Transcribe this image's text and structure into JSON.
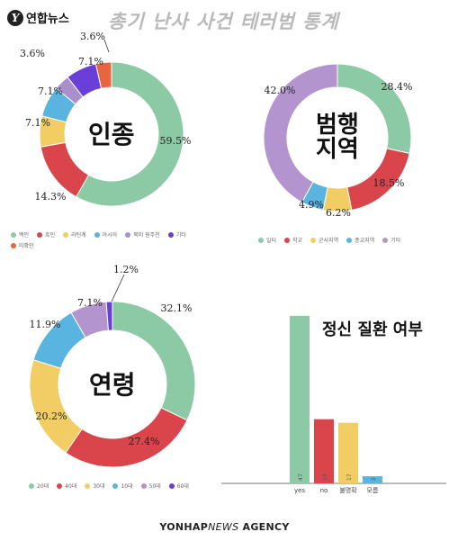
{
  "header": {
    "logo_text": "연합뉴스",
    "title": "총기 난사 사건 테러범 통계"
  },
  "footer": {
    "agency_bold": "YONHAP",
    "agency_italic": "NEWS",
    "agency_rest": "AGENCY"
  },
  "chart_data": [
    {
      "type": "pie",
      "title": "인종",
      "categories": [
        "백인",
        "흑인",
        "라틴계",
        "아시아",
        "북미 원주민",
        "기타",
        "미확인"
      ],
      "values": [
        59.5,
        14.3,
        7.1,
        7.1,
        3.6,
        7.1,
        3.6
      ],
      "value_labels": [
        "59.5%",
        "14.3%",
        "7.1%",
        "7.1%",
        "3.6%",
        "7.1%",
        "3.6%"
      ],
      "colors": [
        "#8cc9a5",
        "#d9454a",
        "#f2cd63",
        "#5ab4e0",
        "#a98fce",
        "#6a3fd8",
        "#e8663d"
      ],
      "legend_position": "bottom"
    },
    {
      "type": "pie",
      "title": "범행 지역",
      "categories": [
        "일터",
        "학교",
        "군사지역",
        "종교지역",
        "기타"
      ],
      "values": [
        28.4,
        18.5,
        6.2,
        4.9,
        42.0
      ],
      "value_labels": [
        "28.4%",
        "18.5%",
        "6.2%",
        "4.9%",
        "42.0%"
      ],
      "colors": [
        "#8cc9a5",
        "#d9454a",
        "#f2cd63",
        "#5ab4e0",
        "#b394cf"
      ],
      "legend_position": "bottom"
    },
    {
      "type": "pie",
      "title": "연령",
      "categories": [
        "20대",
        "40대",
        "30대",
        "10대",
        "50대",
        "60대"
      ],
      "values": [
        32.1,
        27.4,
        20.2,
        11.9,
        7.1,
        1.2
      ],
      "value_labels": [
        "32.1%",
        "27.4%",
        "20.2%",
        "11.9%",
        "7.1%",
        "1.2%"
      ],
      "colors": [
        "#8cc9a5",
        "#d9454a",
        "#f2cd63",
        "#5ab4e0",
        "#b394cf",
        "#6a3fd8"
      ],
      "legend_position": "bottom"
    },
    {
      "type": "bar",
      "title": "정신 질환 여부",
      "categories": [
        "yes",
        "no",
        "불명확",
        "모름"
      ],
      "values": [
        47,
        18,
        17,
        2
      ],
      "colors": [
        "#8cc9a5",
        "#d9454a",
        "#f2cd63",
        "#5ab4e0"
      ],
      "ylim": [
        0,
        50
      ]
    }
  ]
}
